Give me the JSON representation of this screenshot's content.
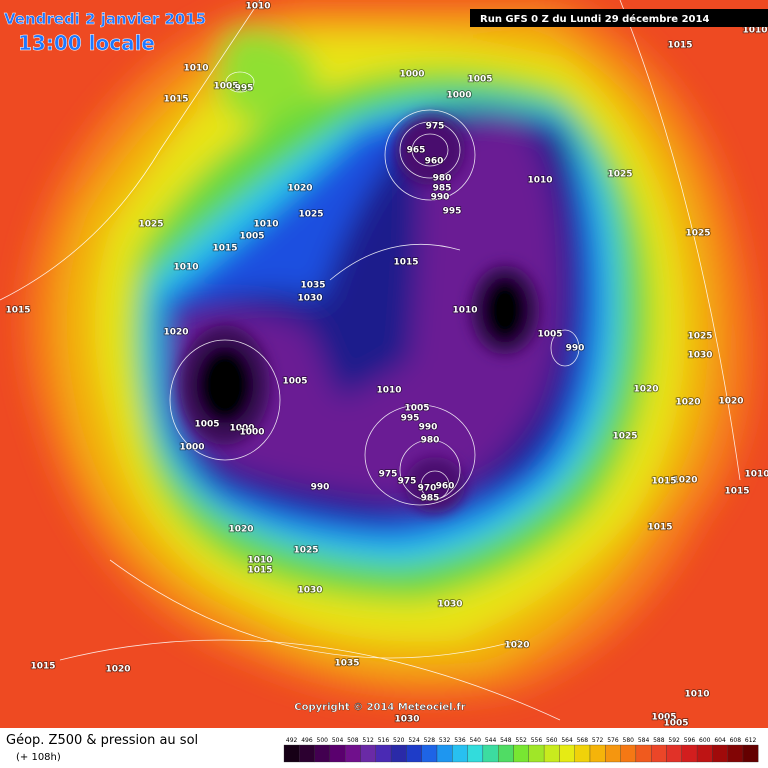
{
  "header": {
    "date": "Vendredi 2 janvier 2015",
    "time": "13:00 locale",
    "run": "Run GFS 0 Z du Lundi 29 décembre 2014"
  },
  "copyright": "Copyright © 2014 Meteociel.fr",
  "footer": {
    "title": "Géop. Z500 & pression au sol",
    "lead": "(+ 108h)"
  },
  "scale": {
    "ticks": [
      492,
      496,
      500,
      504,
      508,
      512,
      516,
      520,
      524,
      528,
      532,
      536,
      540,
      544,
      548,
      552,
      556,
      560,
      564,
      568,
      572,
      576,
      580,
      584,
      588,
      592,
      596,
      600,
      604,
      608,
      612
    ],
    "colors": [
      "#160016",
      "#2c0030",
      "#420050",
      "#5a006e",
      "#70108c",
      "#6a2aa6",
      "#4a2ab4",
      "#2a2aa8",
      "#1e3cc8",
      "#1e64e6",
      "#1e96f0",
      "#28c0f0",
      "#32dcdc",
      "#3cdca0",
      "#50dc64",
      "#78e632",
      "#a0e628",
      "#c8eb1e",
      "#e6eb14",
      "#f0d20a",
      "#f5b40a",
      "#f5960f",
      "#f57814",
      "#f05a1e",
      "#eb4628",
      "#e13228",
      "#d21e1e",
      "#be1414",
      "#a00a0a",
      "#820505",
      "#640000"
    ]
  },
  "isobar_labels": [
    "1010",
    "1010",
    "1005",
    "995",
    "1015",
    "1000",
    "1005",
    "1000",
    "975",
    "965",
    "960",
    "980",
    "985",
    "990",
    "995",
    "1010",
    "1025",
    "1015",
    "1010",
    "1020",
    "1025",
    "1025",
    "1010",
    "1005",
    "1015",
    "1010",
    "1015",
    "1015",
    "1035",
    "1030",
    "1020",
    "1005",
    "1010",
    "1005",
    "990",
    "1025",
    "1025",
    "1030",
    "1010",
    "1005",
    "995",
    "990",
    "980",
    "1020",
    "1020",
    "1020",
    "1005",
    "1000",
    "1000",
    "1000",
    "1025",
    "975",
    "975",
    "970",
    "960",
    "985",
    "990",
    "1020",
    "1015",
    "1015",
    "1010",
    "1020",
    "1015",
    "1025",
    "1010",
    "1015",
    "1030",
    "1030",
    "1020",
    "1015",
    "1020",
    "1035",
    "1010",
    "1005",
    "1005",
    "1030"
  ]
}
